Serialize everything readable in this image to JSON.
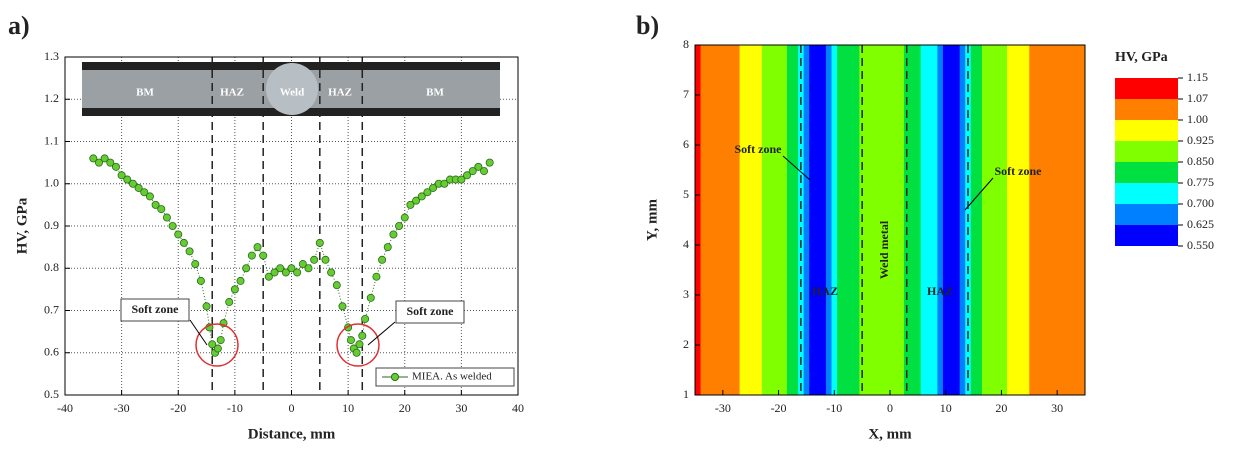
{
  "chart_data": [
    {
      "type": "scatter",
      "panel_label": "a)",
      "x_label": "Distance, mm",
      "y_label": "HV, GPa",
      "series": [
        {
          "name": "MIEA. As welded",
          "color": "#66cc33",
          "x": [
            -35,
            -34,
            -33,
            -32,
            -31,
            -30,
            -29,
            -28,
            -27,
            -26,
            -25,
            -24,
            -23,
            -22,
            -21,
            -20,
            -19,
            -18,
            -17,
            -16,
            -15,
            -14.5,
            -14,
            -13.5,
            -13,
            -12.5,
            -12,
            -11,
            -10,
            -9,
            -8,
            -7,
            -6,
            -5,
            -4,
            -3,
            -2,
            -1,
            0,
            1,
            2,
            3,
            4,
            5,
            6,
            7,
            8,
            9,
            10,
            10.5,
            11,
            11.5,
            12,
            12.5,
            13,
            14,
            15,
            16,
            17,
            18,
            19,
            20,
            21,
            22,
            23,
            24,
            25,
            26,
            27,
            28,
            29,
            30,
            31,
            32,
            33,
            34,
            35
          ],
          "values": [
            1.06,
            1.05,
            1.06,
            1.05,
            1.04,
            1.02,
            1.01,
            1.0,
            0.99,
            0.98,
            0.97,
            0.95,
            0.94,
            0.92,
            0.9,
            0.88,
            0.86,
            0.84,
            0.81,
            0.77,
            0.71,
            0.66,
            0.62,
            0.6,
            0.61,
            0.63,
            0.67,
            0.72,
            0.75,
            0.77,
            0.8,
            0.83,
            0.85,
            0.83,
            0.78,
            0.79,
            0.8,
            0.79,
            0.8,
            0.79,
            0.81,
            0.8,
            0.82,
            0.86,
            0.82,
            0.79,
            0.76,
            0.71,
            0.66,
            0.63,
            0.61,
            0.6,
            0.62,
            0.64,
            0.68,
            0.73,
            0.78,
            0.82,
            0.85,
            0.88,
            0.9,
            0.92,
            0.95,
            0.96,
            0.97,
            0.98,
            0.99,
            1.0,
            1.0,
            1.01,
            1.01,
            1.01,
            1.02,
            1.03,
            1.04,
            1.03,
            1.05
          ]
        }
      ],
      "xlim": [
        -40,
        40
      ],
      "xticks": [
        -40,
        -30,
        -20,
        -10,
        0,
        10,
        20,
        30,
        40
      ],
      "ylim": [
        0.5,
        1.3
      ],
      "yticks": [
        0.5,
        0.6,
        0.7,
        0.8,
        0.9,
        {
          "value": 1,
          "label": "1.0"
        },
        1.1,
        1.2,
        1.3
      ],
      "grid": true,
      "legend": "lower right",
      "vlines": [
        -14,
        -5,
        5,
        12.5
      ],
      "inset_labels": [
        "BM",
        "HAZ",
        "Weld",
        "HAZ",
        "BM"
      ],
      "annotations": [
        "Soft zone",
        "Soft zone"
      ]
    },
    {
      "type": "contour",
      "panel_label": "b)",
      "x_label": "X, mm",
      "y_label": "Y, mm",
      "x": [
        -35,
        -33,
        -30,
        -28,
        -26,
        -24,
        -22,
        -20,
        -19,
        -18,
        -17,
        -16,
        -15,
        -14,
        -13,
        -12,
        -11,
        -10,
        -9,
        -8,
        -7,
        -6,
        -5,
        -4,
        -3,
        -2,
        -1,
        0,
        1,
        2,
        3,
        4,
        5,
        6,
        7,
        8,
        9,
        10,
        11,
        12,
        13,
        14,
        15,
        16,
        17,
        18,
        19,
        20,
        22,
        24,
        26,
        28,
        30,
        33,
        35
      ],
      "values": [
        1.1,
        1.05,
        1.04,
        1.02,
        0.96,
        0.93,
        0.9,
        0.88,
        0.86,
        0.82,
        0.78,
        0.74,
        0.68,
        0.6,
        0.57,
        0.62,
        0.7,
        0.76,
        0.78,
        0.79,
        0.8,
        0.84,
        0.86,
        0.87,
        0.88,
        0.89,
        0.9,
        0.91,
        0.9,
        0.88,
        0.85,
        0.8,
        0.78,
        0.77,
        0.76,
        0.73,
        0.68,
        0.62,
        0.57,
        0.6,
        0.68,
        0.76,
        0.81,
        0.84,
        0.86,
        0.88,
        0.9,
        0.92,
        0.95,
        0.97,
        1.02,
        1.04,
        1.05,
        1.05,
        1.06
      ],
      "xlim": [
        -35,
        35
      ],
      "xticks": [
        -30,
        -20,
        -10,
        0,
        10,
        20,
        30
      ],
      "ylim": [
        1,
        8
      ],
      "yticks": [
        1,
        2,
        3,
        4,
        5,
        6,
        7,
        8
      ],
      "vlines": [
        -16,
        -5,
        3,
        14
      ],
      "colorbar": {
        "title": "HV, GPa",
        "levels": [
          1.15,
          1.07,
          {
            "value": 1,
            "label": "1.00"
          },
          0.925,
          {
            "value": 0.85,
            "label": "0.850"
          },
          0.775,
          {
            "value": 0.7,
            "label": "0.700"
          },
          0.625,
          {
            "value": 0.55,
            "label": "0.550"
          }
        ],
        "colors": [
          "#ff0000",
          "#ff8000",
          "#ffff00",
          "#80ff00",
          "#00e040",
          "#00ffff",
          "#0080ff",
          "#0000ff"
        ]
      },
      "annotations": [
        "Soft zone",
        "Soft zone",
        "HAZ",
        "Weld metal",
        "HAZ"
      ]
    }
  ]
}
